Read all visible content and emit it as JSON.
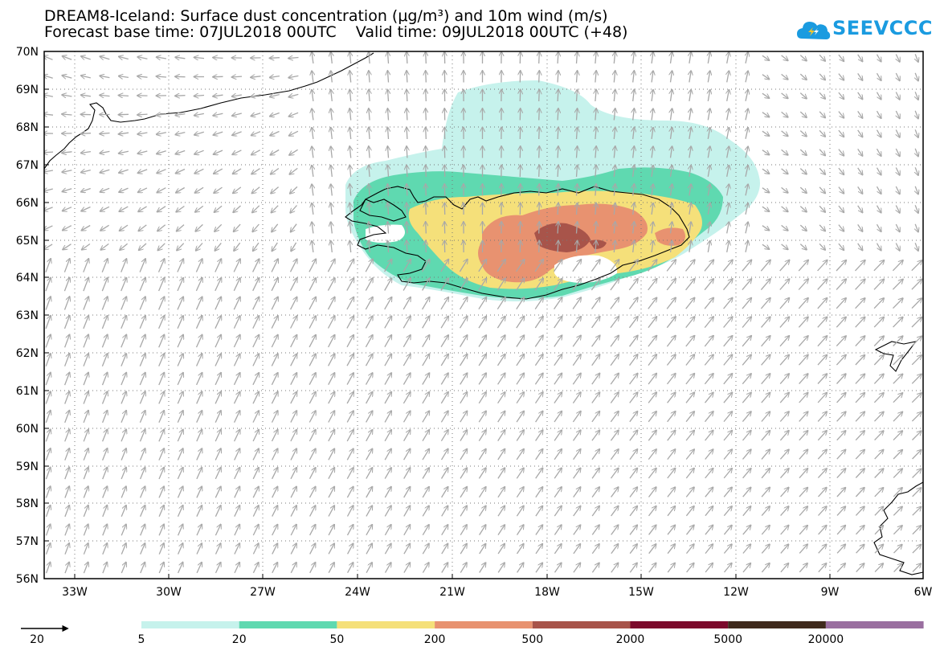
{
  "header": {
    "title_line1": "DREAM8-Iceland: Surface dust concentration (μg/m³) and 10m wind (m/s)",
    "title_line2": "Forecast base time: 07JUL2018 00UTC    Valid time: 09JUL2018 00UTC (+48)"
  },
  "logo": {
    "text": "SEEVCCC",
    "icon": "cloud-logo-icon",
    "color": "#1a9be0"
  },
  "axes": {
    "lat_labels": [
      "70N",
      "69N",
      "68N",
      "67N",
      "66N",
      "65N",
      "64N",
      "63N",
      "62N",
      "61N",
      "60N",
      "59N",
      "58N",
      "57N",
      "56N"
    ],
    "lon_labels": [
      "33W",
      "30W",
      "27W",
      "24W",
      "21W",
      "18W",
      "15W",
      "12W",
      "9W",
      "6W"
    ]
  },
  "wind_reference": {
    "label": "20",
    "icon": "reference-arrow-icon"
  },
  "colorbar": {
    "colors": [
      "#c6f2ec",
      "#5fd9b0",
      "#f5e07a",
      "#e89270",
      "#a8544a",
      "#7c0a2c",
      "#3f2a1c",
      "#9a6fa0"
    ],
    "labels": [
      "5",
      "20",
      "50",
      "200",
      "500",
      "2000",
      "5000",
      "20000"
    ]
  },
  "colors": {
    "coast": "#000000",
    "wind_arrow": "#a8a8a8",
    "grid": "#666666"
  }
}
